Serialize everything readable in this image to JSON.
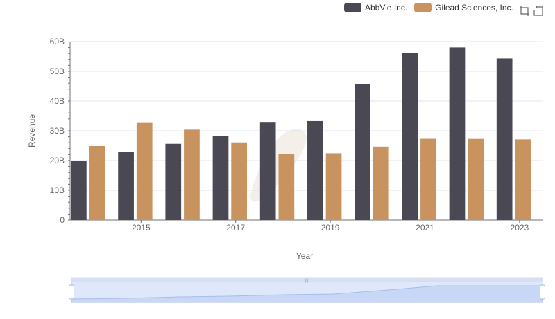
{
  "legend": [
    {
      "name": "AbbVie Inc.",
      "color": "#4a4953"
    },
    {
      "name": "Gilead Sciences, Inc.",
      "color": "#c8935e"
    }
  ],
  "toolbox": {
    "icons": [
      "zoom-icon",
      "restore-icon"
    ]
  },
  "chart_data": {
    "type": "bar",
    "xlabel": "Year",
    "ylabel": "Revenue",
    "y_ticks": [
      "0",
      "10B",
      "20B",
      "30B",
      "40B",
      "50B",
      "60B"
    ],
    "x_tick_labels": [
      "2015",
      "2017",
      "2019",
      "2021",
      "2023"
    ],
    "ylim": [
      0,
      60000000000
    ],
    "grid": true,
    "legend_position": "top-right",
    "categories": [
      "2014",
      "2015",
      "2016",
      "2017",
      "2018",
      "2019",
      "2020",
      "2021",
      "2022",
      "2023"
    ],
    "series": [
      {
        "name": "AbbVie Inc.",
        "color": "#4a4953",
        "values": [
          19960000000,
          22860000000,
          25640000000,
          28220000000,
          32750000000,
          33270000000,
          45800000000,
          56200000000,
          58050000000,
          54320000000
        ]
      },
      {
        "name": "Gilead Sciences, Inc.",
        "color": "#c8935e",
        "values": [
          24890000000,
          32640000000,
          30390000000,
          26110000000,
          22130000000,
          22450000000,
          24690000000,
          27310000000,
          27280000000,
          27120000000
        ]
      }
    ]
  }
}
